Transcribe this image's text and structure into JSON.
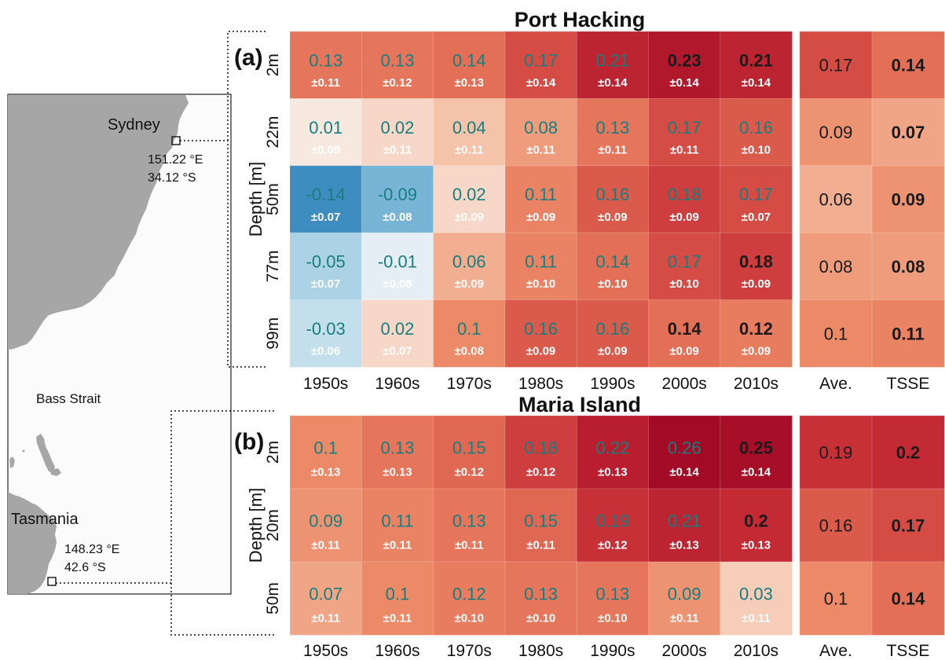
{
  "map": {
    "sydney": "Sydney",
    "sydney_lon": "151.22 °E",
    "sydney_lat": "34.12 °S",
    "bass_strait": "Bass Strait",
    "tasmania": "Tasmania",
    "maria_lon": "148.23 °E",
    "maria_lat": "42.6 °S"
  },
  "colors": {
    "text_teal": "#177e7e",
    "text_dark": "#1a1a1a",
    "land": "#a6a6a6",
    "sea": "#fbfbfb"
  },
  "chart_data": [
    {
      "type": "heatmap",
      "panel_label": "(a)",
      "title": "Port Hacking",
      "ylabel": "Depth [m]",
      "x": [
        "1950s",
        "1960s",
        "1970s",
        "1980s",
        "1990s",
        "2000s",
        "2010s"
      ],
      "rows": [
        "2m",
        "22m",
        "50m",
        "77m",
        "99m"
      ],
      "values": [
        [
          0.13,
          0.13,
          0.14,
          0.17,
          0.21,
          0.23,
          0.21
        ],
        [
          0.01,
          0.02,
          0.04,
          0.08,
          0.13,
          0.17,
          0.16
        ],
        [
          -0.14,
          -0.09,
          0.02,
          0.11,
          0.16,
          0.18,
          0.17
        ],
        [
          -0.05,
          -0.01,
          0.06,
          0.11,
          0.14,
          0.17,
          0.18
        ],
        [
          -0.03,
          0.02,
          0.1,
          0.16,
          0.16,
          0.14,
          0.12
        ]
      ],
      "uncertainty": [
        [
          "±0.11",
          "±0.12",
          "±0.13",
          "±0.14",
          "±0.14",
          "±0.14",
          "±0.14"
        ],
        [
          "±0.09",
          "±0.11",
          "±0.11",
          "±0.11",
          "±0.11",
          "±0.11",
          "±0.10"
        ],
        [
          "±0.07",
          "±0.08",
          "±0.09",
          "±0.09",
          "±0.09",
          "±0.09",
          "±0.07"
        ],
        [
          "±0.07",
          "±0.08",
          "±0.09",
          "±0.10",
          "±0.10",
          "±0.10",
          "±0.09"
        ],
        [
          "±0.06",
          "±0.07",
          "±0.08",
          "±0.09",
          "±0.09",
          "±0.09",
          "±0.09"
        ]
      ],
      "bold": [
        [
          false,
          false,
          false,
          false,
          false,
          true,
          true
        ],
        [
          false,
          false,
          false,
          false,
          false,
          false,
          false
        ],
        [
          false,
          false,
          false,
          false,
          false,
          false,
          false
        ],
        [
          false,
          false,
          false,
          false,
          false,
          false,
          true
        ],
        [
          false,
          false,
          false,
          false,
          false,
          true,
          true
        ]
      ],
      "summary_x": [
        "Ave.",
        "TSSE"
      ],
      "summary_values": [
        [
          0.17,
          0.14
        ],
        [
          0.09,
          0.07
        ],
        [
          0.06,
          0.09
        ],
        [
          0.08,
          0.08
        ],
        [
          0.1,
          0.11
        ]
      ],
      "summary_bold": [
        false,
        true
      ]
    },
    {
      "type": "heatmap",
      "panel_label": "(b)",
      "title": "Maria Island",
      "ylabel": "Depth [m]",
      "x": [
        "1950s",
        "1960s",
        "1970s",
        "1980s",
        "1990s",
        "2000s",
        "2010s"
      ],
      "rows": [
        "2m",
        "20m",
        "50m"
      ],
      "values": [
        [
          0.1,
          0.13,
          0.15,
          0.18,
          0.22,
          0.26,
          0.25
        ],
        [
          0.09,
          0.11,
          0.13,
          0.15,
          0.19,
          0.21,
          0.2
        ],
        [
          0.07,
          0.1,
          0.12,
          0.13,
          0.13,
          0.09,
          0.03
        ]
      ],
      "uncertainty": [
        [
          "±0.13",
          "±0.13",
          "±0.12",
          "±0.12",
          "±0.13",
          "±0.14",
          "±0.14"
        ],
        [
          "±0.11",
          "±0.11",
          "±0.11",
          "±0.11",
          "±0.12",
          "±0.13",
          "±0.13"
        ],
        [
          "±0.11",
          "±0.11",
          "±0.10",
          "±0.10",
          "±0.10",
          "±0.11",
          "±0.11"
        ]
      ],
      "bold": [
        [
          false,
          false,
          false,
          false,
          false,
          false,
          true
        ],
        [
          false,
          false,
          false,
          false,
          false,
          false,
          true
        ],
        [
          false,
          false,
          false,
          false,
          false,
          false,
          false
        ]
      ],
      "summary_x": [
        "Ave.",
        "TSSE"
      ],
      "summary_values": [
        [
          0.19,
          0.2
        ],
        [
          0.16,
          0.17
        ],
        [
          0.1,
          0.14
        ]
      ],
      "summary_bold": [
        false,
        true
      ]
    }
  ]
}
